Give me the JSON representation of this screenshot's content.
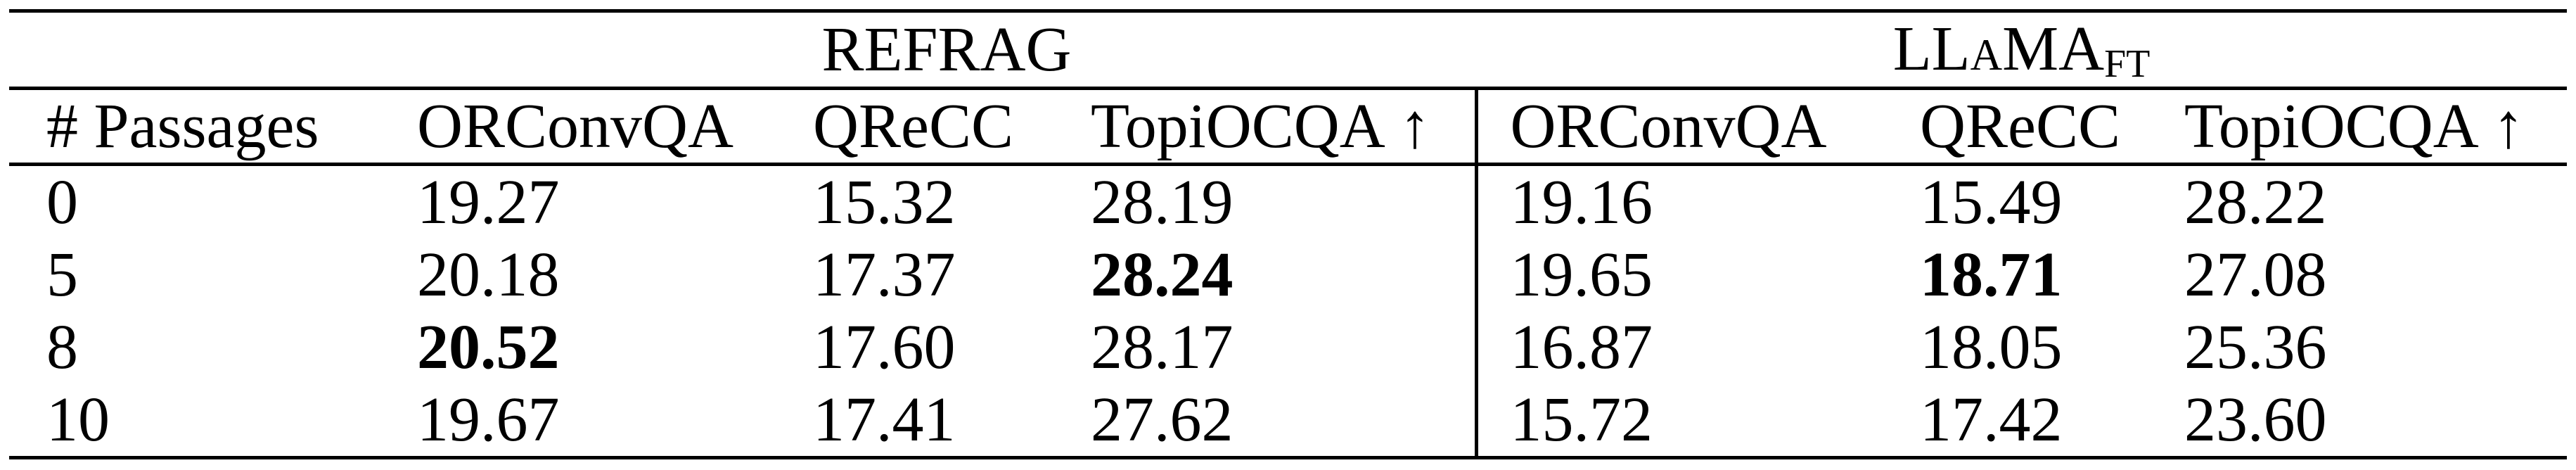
{
  "header": {
    "group_left": "REFRAG",
    "group_right_main": "LLaMA",
    "group_right_sub": "FT"
  },
  "columns": [
    {
      "label": "# Passages"
    },
    {
      "label": "ORConvQA"
    },
    {
      "label": "QReCC"
    },
    {
      "label": "TopiOCQA",
      "arrow": "↑"
    },
    {
      "label": "ORConvQA"
    },
    {
      "label": "QReCC"
    },
    {
      "label": "TopiOCQA",
      "arrow": "↑"
    }
  ],
  "rows": [
    {
      "passages": "0",
      "cells": [
        {
          "v": "19.27",
          "bold": false
        },
        {
          "v": "15.32",
          "bold": false
        },
        {
          "v": "28.19",
          "bold": false
        },
        {
          "v": "19.16",
          "bold": false
        },
        {
          "v": "15.49",
          "bold": false
        },
        {
          "v": "28.22",
          "bold": false
        }
      ]
    },
    {
      "passages": "5",
      "cells": [
        {
          "v": "20.18",
          "bold": false
        },
        {
          "v": "17.37",
          "bold": false
        },
        {
          "v": "28.24",
          "bold": true
        },
        {
          "v": "19.65",
          "bold": false
        },
        {
          "v": "18.71",
          "bold": true
        },
        {
          "v": "27.08",
          "bold": false
        }
      ]
    },
    {
      "passages": "8",
      "cells": [
        {
          "v": "20.52",
          "bold": true
        },
        {
          "v": "17.60",
          "bold": false
        },
        {
          "v": "28.17",
          "bold": false
        },
        {
          "v": "16.87",
          "bold": false
        },
        {
          "v": "18.05",
          "bold": false
        },
        {
          "v": "25.36",
          "bold": false
        }
      ]
    },
    {
      "passages": "10",
      "cells": [
        {
          "v": "19.67",
          "bold": false
        },
        {
          "v": "17.41",
          "bold": false
        },
        {
          "v": "27.62",
          "bold": false
        },
        {
          "v": "15.72",
          "bold": false
        },
        {
          "v": "17.42",
          "bold": false
        },
        {
          "v": "23.60",
          "bold": false
        }
      ]
    }
  ]
}
